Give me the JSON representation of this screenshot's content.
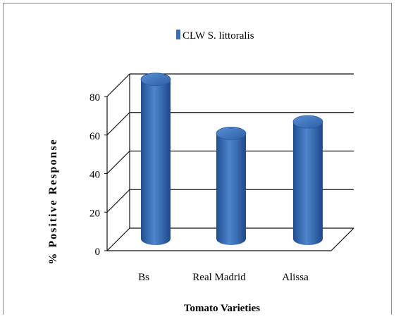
{
  "chart_data": {
    "type": "bar",
    "categories": [
      "Bs",
      "Real  Madrid",
      "Alissa"
    ],
    "series": [
      {
        "name": "CLW S. littoralis",
        "values": [
          83,
          55,
          61
        ]
      }
    ],
    "title": "",
    "xlabel": "Tomato Varieties",
    "ylabel": "% Positive Response",
    "ylim": [
      0,
      80
    ],
    "yticks": [
      0,
      20,
      40,
      60,
      80
    ],
    "legend_position": "top",
    "grid": true,
    "bar_color": "#3a6fb5"
  }
}
